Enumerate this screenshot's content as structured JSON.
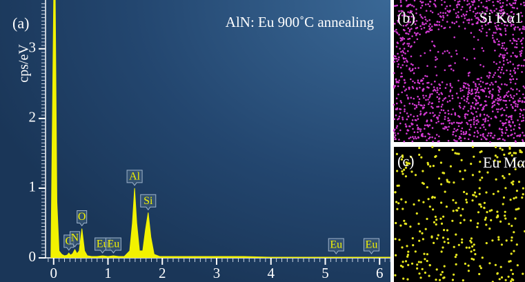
{
  "chart_data": {
    "type": "area",
    "panel_label": "(a)",
    "title": "AlN: Eu 900˚C annealing",
    "y_label": "cps/eV",
    "color": "#f2f200",
    "x": [
      -0.05,
      0,
      0.03,
      0.06,
      0.1,
      0.15,
      0.2,
      0.25,
      0.28,
      0.31,
      0.35,
      0.39,
      0.43,
      0.47,
      0.52,
      0.57,
      0.62,
      0.7,
      0.8,
      0.9,
      1.0,
      1.1,
      1.2,
      1.3,
      1.4,
      1.45,
      1.49,
      1.53,
      1.58,
      1.64,
      1.69,
      1.74,
      1.79,
      1.85,
      1.95,
      2.1,
      2.5,
      3,
      3.5,
      4,
      4.5,
      5,
      5.5,
      6,
      6.2
    ],
    "values": [
      0,
      3.7,
      3.7,
      0.8,
      0.1,
      0.05,
      0.03,
      0.04,
      0.07,
      0.04,
      0.06,
      0.12,
      0.06,
      0.1,
      0.42,
      0.1,
      0.03,
      0.02,
      0.02,
      0.03,
      0.02,
      0.03,
      0.02,
      0.02,
      0.1,
      0.5,
      1.0,
      0.5,
      0.1,
      0.1,
      0.4,
      0.65,
      0.3,
      0.05,
      0.02,
      0.02,
      0.02,
      0.02,
      0.02,
      0.01,
      0.01,
      0.01,
      0.01,
      0.01,
      0.01
    ],
    "peak_labels": [
      {
        "text": "C",
        "x": 0.28
      },
      {
        "text": "N",
        "x": 0.39
      },
      {
        "text": "O",
        "x": 0.52
      },
      {
        "text": "Eu",
        "x": 0.9
      },
      {
        "text": "Eu",
        "x": 1.1
      },
      {
        "text": "Al",
        "x": 1.49
      },
      {
        "text": "Si",
        "x": 1.74
      },
      {
        "text": "Eu",
        "x": 5.2
      },
      {
        "text": "Eu",
        "x": 5.85
      }
    ],
    "xlim": [
      -0.2,
      6.2
    ],
    "xticks": [
      0,
      1,
      2,
      3,
      4,
      5,
      6
    ],
    "ylim": [
      0,
      3.7
    ],
    "yticks": [
      0,
      1,
      2,
      3
    ]
  },
  "maps": [
    {
      "panel": "(b)",
      "title": "Si Kα1",
      "color": "#d43ad4"
    },
    {
      "panel": "(c)",
      "title": "Eu Mα",
      "color": "#e6e61e"
    }
  ]
}
